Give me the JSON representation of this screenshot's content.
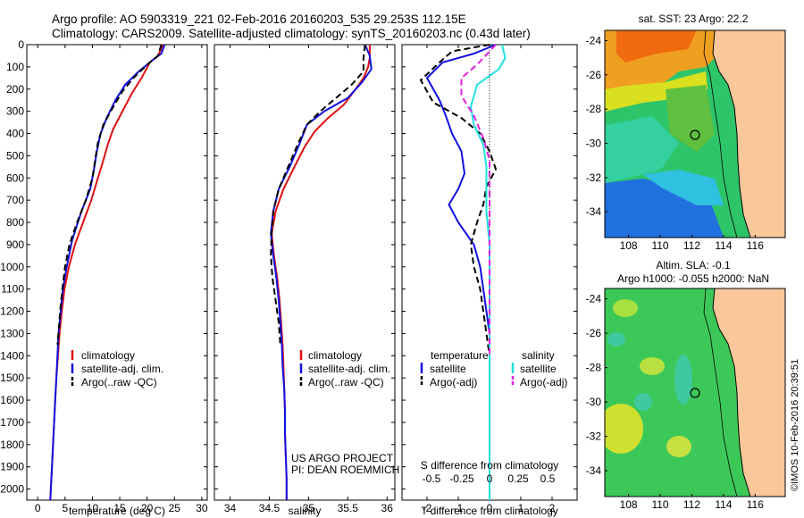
{
  "header": {
    "line1": "Argo profile: AO 5903319_221 02-Feb-2016 20160203_535 29.253S 112.15E",
    "line2": "Climatology: CARS2009. Satellite-adjusted climatology: synTS_20160203.nc (0.43d later)"
  },
  "colors": {
    "climatology": "#e01010",
    "satellite": "#1010e0",
    "argo": "#000000",
    "sat_salinity": "#20e0e0",
    "argo_salinity": "#e020e0",
    "land": "#f9c79a"
  },
  "chart_data": [
    {
      "type": "line",
      "xlabel": "temperature (deg C)",
      "ylim": [
        2050,
        0
      ],
      "xlim": [
        -2,
        31
      ],
      "xticks": [
        0,
        5,
        10,
        15,
        20,
        25,
        30
      ],
      "yticks": [
        0,
        100,
        200,
        300,
        400,
        500,
        600,
        700,
        800,
        900,
        1000,
        1100,
        1200,
        1300,
        1400,
        1500,
        1600,
        1700,
        1800,
        1900,
        2000
      ],
      "legend": [
        "climatology",
        "satellite-adj. clim.",
        "Argo(..raw -QC)"
      ],
      "series": [
        {
          "name": "climatology",
          "color": "red",
          "dash": false,
          "points": [
            [
              22.9,
              0
            ],
            [
              22.0,
              50
            ],
            [
              20.5,
              80
            ],
            [
              19.0,
              150
            ],
            [
              17.2,
              220
            ],
            [
              15.5,
              300
            ],
            [
              13.8,
              380
            ],
            [
              12.8,
              450
            ],
            [
              12.0,
              520
            ],
            [
              11.0,
              600
            ],
            [
              9.8,
              700
            ],
            [
              8.3,
              800
            ],
            [
              6.8,
              900
            ],
            [
              5.7,
              1000
            ],
            [
              4.9,
              1100
            ],
            [
              4.4,
              1200
            ],
            [
              4.0,
              1300
            ],
            [
              3.7,
              1400
            ],
            [
              3.4,
              1500
            ],
            [
              3.2,
              1600
            ],
            [
              3.0,
              1700
            ],
            [
              2.8,
              1800
            ],
            [
              2.6,
              1900
            ],
            [
              2.4,
              2000
            ],
            [
              2.3,
              2050
            ]
          ]
        },
        {
          "name": "satellite-adj. clim.",
          "color": "blue",
          "dash": false,
          "points": [
            [
              23.2,
              0
            ],
            [
              22.6,
              40
            ],
            [
              21.0,
              70
            ],
            [
              18.5,
              120
            ],
            [
              16.0,
              180
            ],
            [
              14.2,
              250
            ],
            [
              12.6,
              330
            ],
            [
              11.5,
              400
            ],
            [
              10.8,
              480
            ],
            [
              10.3,
              560
            ],
            [
              9.6,
              650
            ],
            [
              8.0,
              750
            ],
            [
              6.3,
              880
            ],
            [
              5.3,
              1000
            ],
            [
              4.6,
              1100
            ],
            [
              4.2,
              1200
            ],
            [
              3.8,
              1300
            ],
            [
              3.6,
              1400
            ],
            [
              3.4,
              1500
            ],
            [
              3.2,
              1600
            ],
            [
              3.0,
              1700
            ],
            [
              2.8,
              1800
            ],
            [
              2.6,
              1900
            ],
            [
              2.4,
              2000
            ],
            [
              2.3,
              2050
            ]
          ]
        },
        {
          "name": "Argo(..raw -QC)",
          "color": "black",
          "dash": true,
          "points": [
            [
              22.6,
              0
            ],
            [
              22.0,
              50
            ],
            [
              20.0,
              90
            ],
            [
              17.5,
              150
            ],
            [
              15.5,
              210
            ],
            [
              13.8,
              280
            ],
            [
              12.0,
              360
            ],
            [
              11.0,
              440
            ],
            [
              10.5,
              520
            ],
            [
              10.0,
              600
            ],
            [
              8.8,
              700
            ],
            [
              7.2,
              800
            ],
            [
              5.8,
              900
            ],
            [
              5.0,
              1000
            ],
            [
              4.5,
              1100
            ],
            [
              4.1,
              1200
            ],
            [
              3.8,
              1300
            ],
            [
              3.6,
              1350
            ]
          ]
        }
      ]
    },
    {
      "type": "line",
      "xlabel": "salinity",
      "ylim": [
        2050,
        0
      ],
      "xlim": [
        33.8,
        36.1
      ],
      "xticks": [
        34,
        34.5,
        35,
        35.5,
        36
      ],
      "xticklabels": [
        "34",
        "34.5",
        "35",
        "35.5",
        "36"
      ],
      "legend": [
        "climatology",
        "satellite-adj. clim.",
        "Argo(..raw -QC)"
      ],
      "series": [
        {
          "name": "climatology",
          "color": "red",
          "dash": false,
          "points": [
            [
              35.78,
              0
            ],
            [
              35.78,
              60
            ],
            [
              35.76,
              100
            ],
            [
              35.7,
              150
            ],
            [
              35.6,
              200
            ],
            [
              35.45,
              270
            ],
            [
              35.25,
              330
            ],
            [
              35.08,
              390
            ],
            [
              34.95,
              460
            ],
            [
              34.82,
              550
            ],
            [
              34.68,
              650
            ],
            [
              34.58,
              750
            ],
            [
              34.53,
              850
            ],
            [
              34.56,
              950
            ],
            [
              34.6,
              1050
            ],
            [
              34.63,
              1150
            ],
            [
              34.65,
              1250
            ],
            [
              34.67,
              1350
            ],
            [
              34.68,
              1450
            ],
            [
              34.69,
              1550
            ],
            [
              34.7,
              1650
            ],
            [
              34.7,
              1750
            ],
            [
              34.71,
              1850
            ],
            [
              34.72,
              1950
            ],
            [
              34.72,
              2050
            ]
          ]
        },
        {
          "name": "satellite-adj. clim.",
          "color": "blue",
          "dash": false,
          "points": [
            [
              35.72,
              0
            ],
            [
              35.78,
              50
            ],
            [
              35.8,
              110
            ],
            [
              35.68,
              170
            ],
            [
              35.5,
              240
            ],
            [
              35.2,
              300
            ],
            [
              34.98,
              360
            ],
            [
              34.88,
              450
            ],
            [
              34.76,
              550
            ],
            [
              34.62,
              650
            ],
            [
              34.55,
              750
            ],
            [
              34.52,
              850
            ],
            [
              34.55,
              950
            ],
            [
              34.59,
              1050
            ],
            [
              34.62,
              1150
            ],
            [
              34.64,
              1250
            ],
            [
              34.66,
              1350
            ],
            [
              34.67,
              1450
            ],
            [
              34.69,
              1550
            ],
            [
              34.7,
              1650
            ],
            [
              34.7,
              1750
            ],
            [
              34.71,
              1850
            ],
            [
              34.72,
              1950
            ],
            [
              34.72,
              2050
            ]
          ]
        },
        {
          "name": "Argo(..raw -QC)",
          "color": "black",
          "dash": true,
          "points": [
            [
              35.72,
              0
            ],
            [
              35.7,
              60
            ],
            [
              35.7,
              120
            ],
            [
              35.55,
              180
            ],
            [
              35.35,
              240
            ],
            [
              35.15,
              300
            ],
            [
              34.98,
              360
            ],
            [
              34.86,
              450
            ],
            [
              34.74,
              550
            ],
            [
              34.62,
              650
            ],
            [
              34.55,
              750
            ],
            [
              34.53,
              850
            ],
            [
              34.52,
              950
            ],
            [
              34.54,
              1050
            ],
            [
              34.58,
              1150
            ],
            [
              34.62,
              1250
            ],
            [
              34.64,
              1350
            ]
          ]
        }
      ]
    },
    {
      "type": "line",
      "xlabel": "T difference from climatology",
      "secondary_xlabel": "S difference from climatology",
      "ylim": [
        2050,
        0
      ],
      "xlim": [
        -2.8,
        2.8
      ],
      "xticks": [
        -2,
        -1,
        0,
        1,
        2
      ],
      "secondary_xticks": [
        "-0.5",
        "-0.25",
        "0",
        "0.25",
        "0.5"
      ],
      "legend_headers": [
        "temperature",
        "salinity"
      ],
      "legend": [
        "satellite",
        "Argo(-adj)",
        "satellite",
        "Argo(-adj)"
      ],
      "series": [
        {
          "name": "temperature satellite",
          "color": "blue",
          "dash": false,
          "points": [
            [
              0.2,
              0
            ],
            [
              -0.5,
              40
            ],
            [
              -1.5,
              80
            ],
            [
              -2.0,
              150
            ],
            [
              -1.6,
              250
            ],
            [
              -1.4,
              320
            ],
            [
              -1.2,
              400
            ],
            [
              -0.9,
              480
            ],
            [
              -0.8,
              580
            ],
            [
              -1.0,
              650
            ],
            [
              -1.3,
              720
            ],
            [
              -1.0,
              800
            ],
            [
              -0.5,
              900
            ],
            [
              -0.3,
              1000
            ],
            [
              -0.2,
              1100
            ],
            [
              -0.1,
              1200
            ],
            [
              0.0,
              1300
            ],
            [
              0.0,
              1500
            ],
            [
              0.0,
              2050
            ]
          ]
        },
        {
          "name": "temperature Argo(-adj)",
          "color": "black",
          "dash": true,
          "points": [
            [
              0.0,
              0
            ],
            [
              -1.2,
              30
            ],
            [
              -1.6,
              80
            ],
            [
              -2.2,
              160
            ],
            [
              -1.8,
              260
            ],
            [
              -0.9,
              330
            ],
            [
              -0.3,
              400
            ],
            [
              0.0,
              480
            ],
            [
              0.2,
              560
            ],
            [
              -0.1,
              640
            ],
            [
              -0.2,
              720
            ],
            [
              -0.4,
              800
            ],
            [
              -0.6,
              900
            ],
            [
              -0.5,
              1000
            ],
            [
              -0.3,
              1100
            ],
            [
              -0.2,
              1200
            ],
            [
              -0.1,
              1300
            ],
            [
              0.0,
              1400
            ]
          ]
        },
        {
          "name": "salinity satellite",
          "color": "cyan",
          "dash": false,
          "points": [
            [
              0.4,
              0
            ],
            [
              0.5,
              60
            ],
            [
              0.3,
              110
            ],
            [
              -0.4,
              180
            ],
            [
              -0.6,
              280
            ],
            [
              -0.5,
              360
            ],
            [
              -0.2,
              450
            ],
            [
              -0.1,
              550
            ],
            [
              -0.1,
              650
            ],
            [
              -0.1,
              750
            ],
            [
              0.0,
              900
            ],
            [
              0.0,
              1100
            ],
            [
              0.0,
              1400
            ],
            [
              0.0,
              2050
            ]
          ]
        },
        {
          "name": "salinity Argo(-adj)",
          "color": "magenta",
          "dash": true,
          "points": [
            [
              0.2,
              0
            ],
            [
              -0.4,
              90
            ],
            [
              -0.9,
              150
            ],
            [
              -0.9,
              230
            ],
            [
              -0.5,
              320
            ],
            [
              -0.2,
              420
            ],
            [
              0.0,
              520
            ],
            [
              0.0,
              650
            ],
            [
              0.0,
              800
            ],
            [
              0.0,
              1000
            ],
            [
              0.0,
              1200
            ],
            [
              0.0,
              1400
            ]
          ]
        }
      ]
    }
  ],
  "maps": {
    "top": {
      "title": "sat. SST: 23 Argo: 22.2",
      "yticks": [
        "-24",
        "-26",
        "-28",
        "-30",
        "-32",
        "-34"
      ],
      "xticks": [
        "108",
        "110",
        "112",
        "114",
        "116"
      ],
      "marker": {
        "lon": 112.15,
        "lat": -29.25
      }
    },
    "bottom": {
      "title1": "Altim. SLA: -0.1",
      "title2": "Argo h1000: -0.055 h2000: NaN",
      "yticks": [
        "-24",
        "-26",
        "-28",
        "-30",
        "-32",
        "-34"
      ],
      "xticks": [
        "108",
        "110",
        "112",
        "114",
        "116"
      ],
      "marker": {
        "lon": 112.15,
        "lat": -29.25
      }
    },
    "lon_range": [
      106.5,
      117.9
    ],
    "lat_range": [
      -35.5,
      -23.4
    ]
  },
  "annotations": {
    "project": "US ARGO PROJECT",
    "pi": "PI: DEAN ROEMMICH",
    "credit": "©IMOS 10-Feb-2016 20:39:51"
  }
}
